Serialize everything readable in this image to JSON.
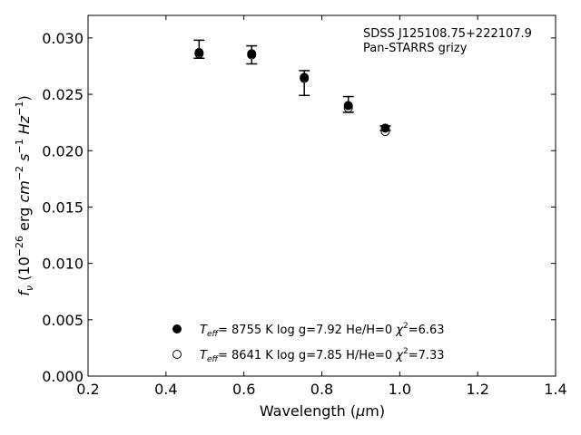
{
  "chart_data": {
    "type": "scatter",
    "title": "",
    "xlabel": "Wavelength (μm)",
    "ylabel": "f_ν (10^-26 erg cm^-2 s^-1 Hz^-1)",
    "xlim": [
      0.2,
      1.4
    ],
    "ylim": [
      0.0,
      0.032
    ],
    "xticks": [
      "0.2",
      "0.4",
      "0.6",
      "0.8",
      "1.0",
      "1.2",
      "1.4"
    ],
    "yticks": [
      "0.000",
      "0.005",
      "0.010",
      "0.015",
      "0.020",
      "0.025",
      "0.030"
    ],
    "grid": false,
    "annotation": [
      "SDSS J125108.75+222107.9",
      "Pan-STARRS grizy"
    ],
    "observed": {
      "x": [
        0.485,
        0.62,
        0.755,
        0.868,
        0.963
      ],
      "y": [
        0.0288,
        0.0287,
        0.0265,
        0.0241,
        0.022
      ],
      "yerr_low": [
        0.0006,
        0.001,
        0.0016,
        0.0007,
        0.0002
      ],
      "yerr_high": [
        0.001,
        0.0006,
        0.0006,
        0.0007,
        0.0002
      ]
    },
    "series": [
      {
        "name": "Teff= 8755 K log g=7.92 He/H=0 χ2=6.63",
        "marker": "filled-circle",
        "x": [
          0.485,
          0.62,
          0.755,
          0.868,
          0.963
        ],
        "y": [
          0.0287,
          0.0286,
          0.0265,
          0.024,
          0.022
        ]
      },
      {
        "name": "Teff= 8641 K log g=7.85 H/He=0 χ2=7.33",
        "marker": "open-circle",
        "x": [
          0.485,
          0.62,
          0.755,
          0.868,
          0.963
        ],
        "y": [
          0.0286,
          0.0285,
          0.0264,
          0.0238,
          0.0217
        ]
      }
    ],
    "legend_placement": "bottom-center",
    "colors": {
      "marker": "#000000",
      "background": "#ffffff"
    }
  }
}
